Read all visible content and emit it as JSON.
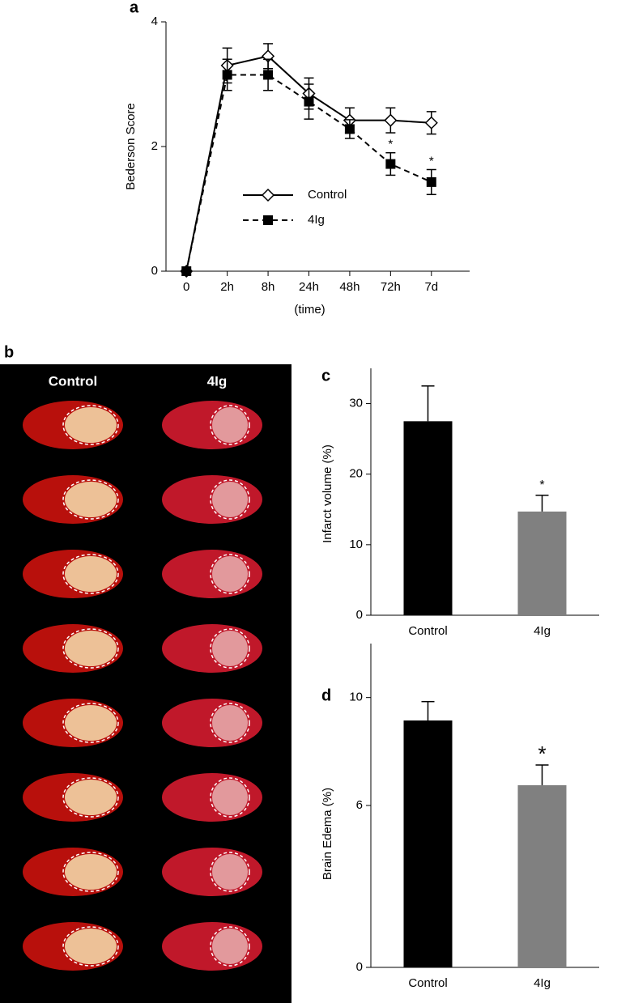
{
  "chart_data": [
    {
      "type": "line",
      "panel": "a",
      "ylabel": "Bederson Score",
      "xlabel": "(time)",
      "categories": [
        "0",
        "2h",
        "8h",
        "24h",
        "48h",
        "72h",
        "7d"
      ],
      "ylim": [
        0,
        4
      ],
      "yticks": [
        0,
        2,
        4
      ],
      "series": [
        {
          "name": "Control",
          "color": "#000000",
          "marker": "diamond",
          "dash": false,
          "values": [
            0,
            3.3,
            3.45,
            2.85,
            2.42,
            2.42,
            2.38
          ],
          "errors": [
            0,
            0.28,
            0.2,
            0.25,
            0.2,
            0.2,
            0.18
          ]
        },
        {
          "name": "4Ig",
          "color": "#000000",
          "marker": "square",
          "dash": true,
          "values": [
            0,
            3.15,
            3.15,
            2.72,
            2.28,
            1.72,
            1.43
          ],
          "errors": [
            0,
            0.25,
            0.25,
            0.28,
            0.15,
            0.18,
            0.2
          ],
          "annotations": [
            null,
            null,
            null,
            null,
            null,
            "*",
            "*"
          ]
        }
      ]
    },
    {
      "type": "bar",
      "panel": "c",
      "ylabel": "Infarct volume (%)",
      "categories": [
        "Control",
        "4Ig"
      ],
      "values": [
        27.5,
        14.7
      ],
      "errors": [
        5,
        2.3
      ],
      "colors": [
        "#000000",
        "#808080"
      ],
      "annotations": [
        null,
        "*"
      ],
      "ylim": [
        0,
        35
      ],
      "yticks": [
        0,
        10,
        20,
        30
      ]
    },
    {
      "type": "bar",
      "panel": "d",
      "ylabel": "Brain Edema (%)",
      "categories": [
        "Control",
        "4Ig"
      ],
      "values": [
        9.15,
        6.75
      ],
      "errors": [
        0.7,
        0.75
      ],
      "colors": [
        "#000000",
        "#808080"
      ],
      "annotations": [
        null,
        "*"
      ],
      "ylim": [
        0,
        12
      ],
      "yticks": [
        0,
        6,
        10
      ]
    }
  ],
  "panel_b": {
    "label": "b",
    "columns": [
      "Control",
      "4Ig"
    ]
  }
}
